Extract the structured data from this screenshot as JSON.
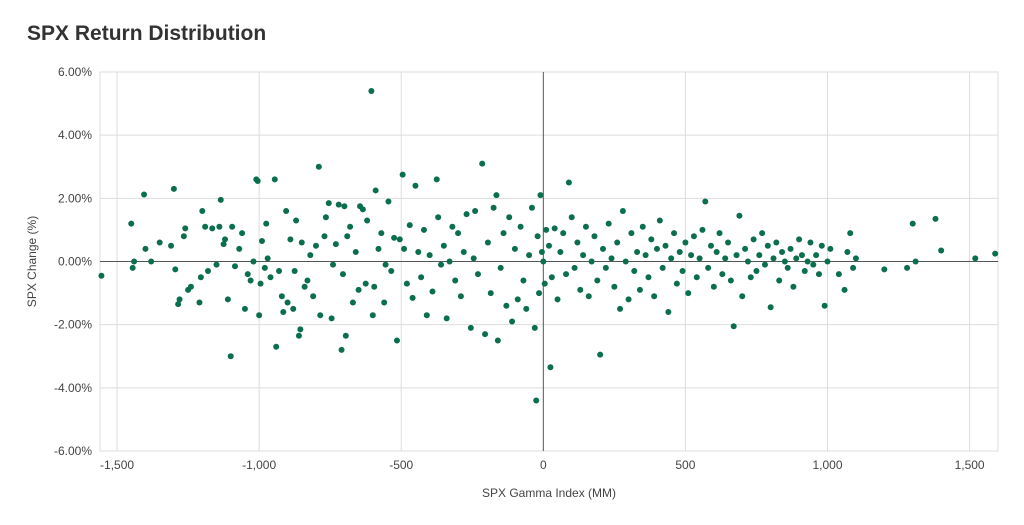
{
  "chart_data": {
    "type": "scatter",
    "title": "SPX Return Distribution",
    "xlabel": "SPX Gamma Index (MM)",
    "ylabel": "SPX Change (%)",
    "xlim": [
      -1560,
      1600
    ],
    "ylim": [
      -6,
      6
    ],
    "x_ticks": [
      -1500,
      -1000,
      -500,
      0,
      500,
      1000,
      1500
    ],
    "x_tick_labels": [
      "-1,500",
      "-1,000",
      "-500",
      "0",
      "500",
      "1,000",
      "1,500"
    ],
    "y_ticks": [
      6,
      4,
      2,
      0,
      -2,
      -4,
      -6
    ],
    "y_tick_labels": [
      "6.00%",
      "4.00%",
      "2.00%",
      "0.00%",
      "-2.00%",
      "-4.00%",
      "-6.00%"
    ],
    "grid": true,
    "legend": "none",
    "point_color": "#0b6e4f",
    "series": [
      {
        "values": [
          [
            -1555,
            -0.45
          ],
          [
            -1450,
            1.2
          ],
          [
            -1445,
            -0.2
          ],
          [
            -1440,
            0.0
          ],
          [
            -1405,
            2.12
          ],
          [
            -1400,
            0.4
          ],
          [
            -1380,
            0.0
          ],
          [
            -1350,
            0.6
          ],
          [
            -1310,
            0.5
          ],
          [
            -1300,
            2.3
          ],
          [
            -1295,
            -0.25
          ],
          [
            -1285,
            -1.35
          ],
          [
            -1280,
            -1.2
          ],
          [
            -1265,
            0.8
          ],
          [
            -1260,
            1.05
          ],
          [
            -1250,
            -0.9
          ],
          [
            -1240,
            -0.8
          ],
          [
            -1210,
            -1.3
          ],
          [
            -1205,
            -0.5
          ],
          [
            -1200,
            1.6
          ],
          [
            -1190,
            1.1
          ],
          [
            -1180,
            -0.3
          ],
          [
            -1165,
            1.05
          ],
          [
            -1150,
            -0.1
          ],
          [
            -1140,
            1.1
          ],
          [
            -1135,
            1.95
          ],
          [
            -1125,
            0.55
          ],
          [
            -1120,
            0.7
          ],
          [
            -1110,
            -1.2
          ],
          [
            -1100,
            -3.0
          ],
          [
            -1095,
            1.1
          ],
          [
            -1085,
            -0.15
          ],
          [
            -1070,
            0.4
          ],
          [
            -1060,
            0.9
          ],
          [
            -1050,
            -1.5
          ],
          [
            -1040,
            -0.4
          ],
          [
            -1030,
            -0.6
          ],
          [
            -1020,
            0.0
          ],
          [
            -1010,
            2.6
          ],
          [
            -1005,
            2.55
          ],
          [
            -1000,
            -1.7
          ],
          [
            -995,
            -0.7
          ],
          [
            -990,
            0.65
          ],
          [
            -980,
            -0.2
          ],
          [
            -975,
            1.2
          ],
          [
            -970,
            0.1
          ],
          [
            -960,
            -0.5
          ],
          [
            -945,
            2.6
          ],
          [
            -940,
            -2.7
          ],
          [
            -930,
            -0.3
          ],
          [
            -920,
            -1.1
          ],
          [
            -915,
            -1.6
          ],
          [
            -905,
            1.6
          ],
          [
            -900,
            -1.3
          ],
          [
            -890,
            0.7
          ],
          [
            -880,
            -1.5
          ],
          [
            -875,
            -0.3
          ],
          [
            -870,
            1.3
          ],
          [
            -860,
            -2.35
          ],
          [
            -855,
            -2.15
          ],
          [
            -850,
            0.6
          ],
          [
            -840,
            -0.8
          ],
          [
            -830,
            -0.6
          ],
          [
            -820,
            0.2
          ],
          [
            -810,
            -1.1
          ],
          [
            -800,
            0.5
          ],
          [
            -790,
            3.0
          ],
          [
            -785,
            -1.7
          ],
          [
            -770,
            0.8
          ],
          [
            -765,
            1.4
          ],
          [
            -755,
            1.85
          ],
          [
            -745,
            -1.8
          ],
          [
            -740,
            -0.1
          ],
          [
            -730,
            0.55
          ],
          [
            -720,
            1.8
          ],
          [
            -710,
            -2.8
          ],
          [
            -705,
            -0.4
          ],
          [
            -700,
            1.75
          ],
          [
            -695,
            -2.35
          ],
          [
            -690,
            0.8
          ],
          [
            -680,
            1.1
          ],
          [
            -670,
            -1.3
          ],
          [
            -660,
            0.3
          ],
          [
            -650,
            -0.9
          ],
          [
            -645,
            1.75
          ],
          [
            -635,
            1.65
          ],
          [
            -625,
            -0.7
          ],
          [
            -620,
            1.3
          ],
          [
            -605,
            5.4
          ],
          [
            -600,
            -1.7
          ],
          [
            -595,
            -0.8
          ],
          [
            -590,
            2.25
          ],
          [
            -580,
            0.4
          ],
          [
            -570,
            0.9
          ],
          [
            -560,
            -1.3
          ],
          [
            -555,
            -0.1
          ],
          [
            -545,
            1.9
          ],
          [
            -535,
            -0.3
          ],
          [
            -525,
            0.75
          ],
          [
            -515,
            -2.5
          ],
          [
            -505,
            0.7
          ],
          [
            -495,
            2.75
          ],
          [
            -490,
            0.4
          ],
          [
            -480,
            -0.7
          ],
          [
            -470,
            1.15
          ],
          [
            -460,
            -1.15
          ],
          [
            -450,
            2.4
          ],
          [
            -440,
            0.3
          ],
          [
            -430,
            -0.5
          ],
          [
            -420,
            1.0
          ],
          [
            -410,
            -1.7
          ],
          [
            -400,
            0.2
          ],
          [
            -390,
            -0.95
          ],
          [
            -375,
            2.6
          ],
          [
            -370,
            1.4
          ],
          [
            -360,
            -0.1
          ],
          [
            -350,
            0.5
          ],
          [
            -340,
            -1.8
          ],
          [
            -330,
            0.0
          ],
          [
            -320,
            1.1
          ],
          [
            -310,
            -0.6
          ],
          [
            -300,
            0.9
          ],
          [
            -290,
            -1.1
          ],
          [
            -280,
            0.3
          ],
          [
            -270,
            1.5
          ],
          [
            -255,
            -2.1
          ],
          [
            -245,
            0.1
          ],
          [
            -240,
            1.6
          ],
          [
            -230,
            -0.4
          ],
          [
            -215,
            3.1
          ],
          [
            -205,
            -2.3
          ],
          [
            -195,
            0.6
          ],
          [
            -185,
            -1.0
          ],
          [
            -175,
            1.7
          ],
          [
            -165,
            2.1
          ],
          [
            -160,
            -2.5
          ],
          [
            -150,
            -0.2
          ],
          [
            -140,
            0.9
          ],
          [
            -130,
            -1.4
          ],
          [
            -120,
            1.4
          ],
          [
            -110,
            -1.9
          ],
          [
            -100,
            0.4
          ],
          [
            -90,
            -1.2
          ],
          [
            -80,
            1.1
          ],
          [
            -70,
            -0.6
          ],
          [
            -60,
            -1.5
          ],
          [
            -50,
            0.2
          ],
          [
            -40,
            1.7
          ],
          [
            -30,
            -2.1
          ],
          [
            -25,
            -4.4
          ],
          [
            -20,
            0.8
          ],
          [
            -15,
            -1.0
          ],
          [
            -10,
            2.1
          ],
          [
            -5,
            0.3
          ],
          [
            0,
            0.0
          ],
          [
            5,
            -0.7
          ],
          [
            10,
            1.0
          ],
          [
            20,
            0.5
          ],
          [
            25,
            -3.35
          ],
          [
            30,
            -0.5
          ],
          [
            40,
            1.05
          ],
          [
            50,
            -1.2
          ],
          [
            60,
            0.3
          ],
          [
            70,
            0.9
          ],
          [
            80,
            -0.4
          ],
          [
            90,
            2.5
          ],
          [
            100,
            1.4
          ],
          [
            110,
            -0.2
          ],
          [
            120,
            0.6
          ],
          [
            130,
            -0.9
          ],
          [
            140,
            0.2
          ],
          [
            150,
            1.1
          ],
          [
            160,
            -1.1
          ],
          [
            170,
            0.0
          ],
          [
            180,
            0.8
          ],
          [
            190,
            -0.6
          ],
          [
            200,
            -2.95
          ],
          [
            210,
            0.4
          ],
          [
            220,
            -0.2
          ],
          [
            230,
            1.2
          ],
          [
            240,
            0.1
          ],
          [
            250,
            -0.8
          ],
          [
            260,
            0.6
          ],
          [
            270,
            -1.5
          ],
          [
            280,
            1.6
          ],
          [
            290,
            0.0
          ],
          [
            300,
            -1.2
          ],
          [
            310,
            0.9
          ],
          [
            320,
            -0.3
          ],
          [
            330,
            0.3
          ],
          [
            340,
            -0.9
          ],
          [
            350,
            1.1
          ],
          [
            360,
            0.2
          ],
          [
            370,
            -0.5
          ],
          [
            380,
            0.7
          ],
          [
            390,
            -1.1
          ],
          [
            400,
            0.4
          ],
          [
            410,
            1.3
          ],
          [
            420,
            -0.2
          ],
          [
            430,
            0.5
          ],
          [
            440,
            -1.6
          ],
          [
            450,
            0.1
          ],
          [
            460,
            0.9
          ],
          [
            470,
            -0.7
          ],
          [
            480,
            0.3
          ],
          [
            490,
            -0.3
          ],
          [
            500,
            0.6
          ],
          [
            510,
            -1.0
          ],
          [
            520,
            0.2
          ],
          [
            530,
            0.8
          ],
          [
            540,
            -0.5
          ],
          [
            550,
            0.1
          ],
          [
            560,
            1.0
          ],
          [
            570,
            1.9
          ],
          [
            580,
            -0.2
          ],
          [
            590,
            0.5
          ],
          [
            600,
            -0.8
          ],
          [
            610,
            0.3
          ],
          [
            620,
            0.9
          ],
          [
            630,
            -0.4
          ],
          [
            640,
            0.1
          ],
          [
            650,
            0.6
          ],
          [
            660,
            -0.6
          ],
          [
            670,
            -2.05
          ],
          [
            680,
            0.2
          ],
          [
            690,
            1.45
          ],
          [
            700,
            -1.1
          ],
          [
            710,
            0.4
          ],
          [
            720,
            0.0
          ],
          [
            730,
            -0.5
          ],
          [
            740,
            0.7
          ],
          [
            750,
            -0.3
          ],
          [
            760,
            0.2
          ],
          [
            770,
            0.9
          ],
          [
            780,
            -0.1
          ],
          [
            790,
            0.5
          ],
          [
            800,
            -1.45
          ],
          [
            810,
            0.1
          ],
          [
            820,
            0.6
          ],
          [
            830,
            -0.6
          ],
          [
            840,
            0.3
          ],
          [
            850,
            0.0
          ],
          [
            860,
            -0.2
          ],
          [
            870,
            0.4
          ],
          [
            880,
            -0.8
          ],
          [
            890,
            0.1
          ],
          [
            900,
            0.7
          ],
          [
            910,
            0.2
          ],
          [
            920,
            -0.3
          ],
          [
            930,
            0.0
          ],
          [
            940,
            0.6
          ],
          [
            950,
            -0.1
          ],
          [
            960,
            0.2
          ],
          [
            970,
            -0.4
          ],
          [
            980,
            0.5
          ],
          [
            990,
            -1.4
          ],
          [
            1000,
            0.0
          ],
          [
            1010,
            0.4
          ],
          [
            1040,
            -0.4
          ],
          [
            1060,
            -0.9
          ],
          [
            1070,
            0.3
          ],
          [
            1080,
            0.9
          ],
          [
            1090,
            -0.2
          ],
          [
            1100,
            0.1
          ],
          [
            1200,
            -0.25
          ],
          [
            1280,
            -0.2
          ],
          [
            1300,
            1.2
          ],
          [
            1310,
            0.0
          ],
          [
            1380,
            1.35
          ],
          [
            1400,
            0.35
          ],
          [
            1520,
            0.1
          ],
          [
            1590,
            0.25
          ]
        ]
      }
    ]
  }
}
